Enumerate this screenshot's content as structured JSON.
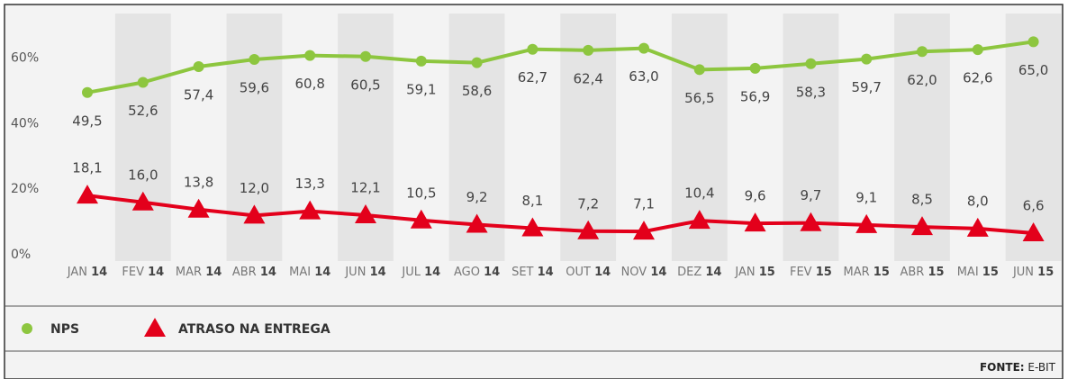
{
  "chart_data": {
    "type": "line",
    "categories": [
      "JAN 14",
      "FEV 14",
      "MAR 14",
      "ABR 14",
      "MAI 14",
      "JUN 14",
      "JUL 14",
      "AGO 14",
      "SET 14",
      "OUT 14",
      "NOV 14",
      "DEZ 14",
      "JAN 15",
      "FEV 15",
      "MAR 15",
      "ABR 15",
      "MAI 15",
      "JUN 15"
    ],
    "series": [
      {
        "name": "NPS",
        "color": "#8dc63f",
        "marker": "circle",
        "values": [
          49.5,
          52.6,
          57.4,
          59.6,
          60.8,
          60.5,
          59.1,
          58.6,
          62.7,
          62.4,
          63.0,
          56.5,
          56.9,
          58.3,
          59.7,
          62.0,
          62.6,
          65.0
        ],
        "value_labels": [
          "49,5",
          "52,6",
          "57,4",
          "59,6",
          "60,8",
          "60,5",
          "59,1",
          "58,6",
          "62,7",
          "62,4",
          "63,0",
          "56,5",
          "56,9",
          "58,3",
          "59,7",
          "62,0",
          "62,6",
          "65,0"
        ]
      },
      {
        "name": "ATRASO NA ENTREGA",
        "color": "#e3001b",
        "marker": "triangle",
        "values": [
          18.1,
          16.0,
          13.8,
          12.0,
          13.3,
          12.1,
          10.5,
          9.2,
          8.1,
          7.2,
          7.1,
          10.4,
          9.6,
          9.7,
          9.1,
          8.5,
          8.0,
          6.6
        ],
        "value_labels": [
          "18,1",
          "16,0",
          "13,8",
          "12,0",
          "13,3",
          "12,1",
          "10,5",
          "9,2",
          "8,1",
          "7,2",
          "7,1",
          "10,4",
          "9,6",
          "9,7",
          "9,1",
          "8,5",
          "8,0",
          "6,6"
        ]
      }
    ],
    "ylim": [
      -2,
      74
    ],
    "yticks": [
      {
        "value": 0,
        "label": "0%"
      },
      {
        "value": 20,
        "label": "20%"
      },
      {
        "value": 40,
        "label": "40%"
      },
      {
        "value": 60,
        "label": "60%"
      }
    ],
    "source_label": "FONTE:",
    "source": "E-BIT"
  }
}
